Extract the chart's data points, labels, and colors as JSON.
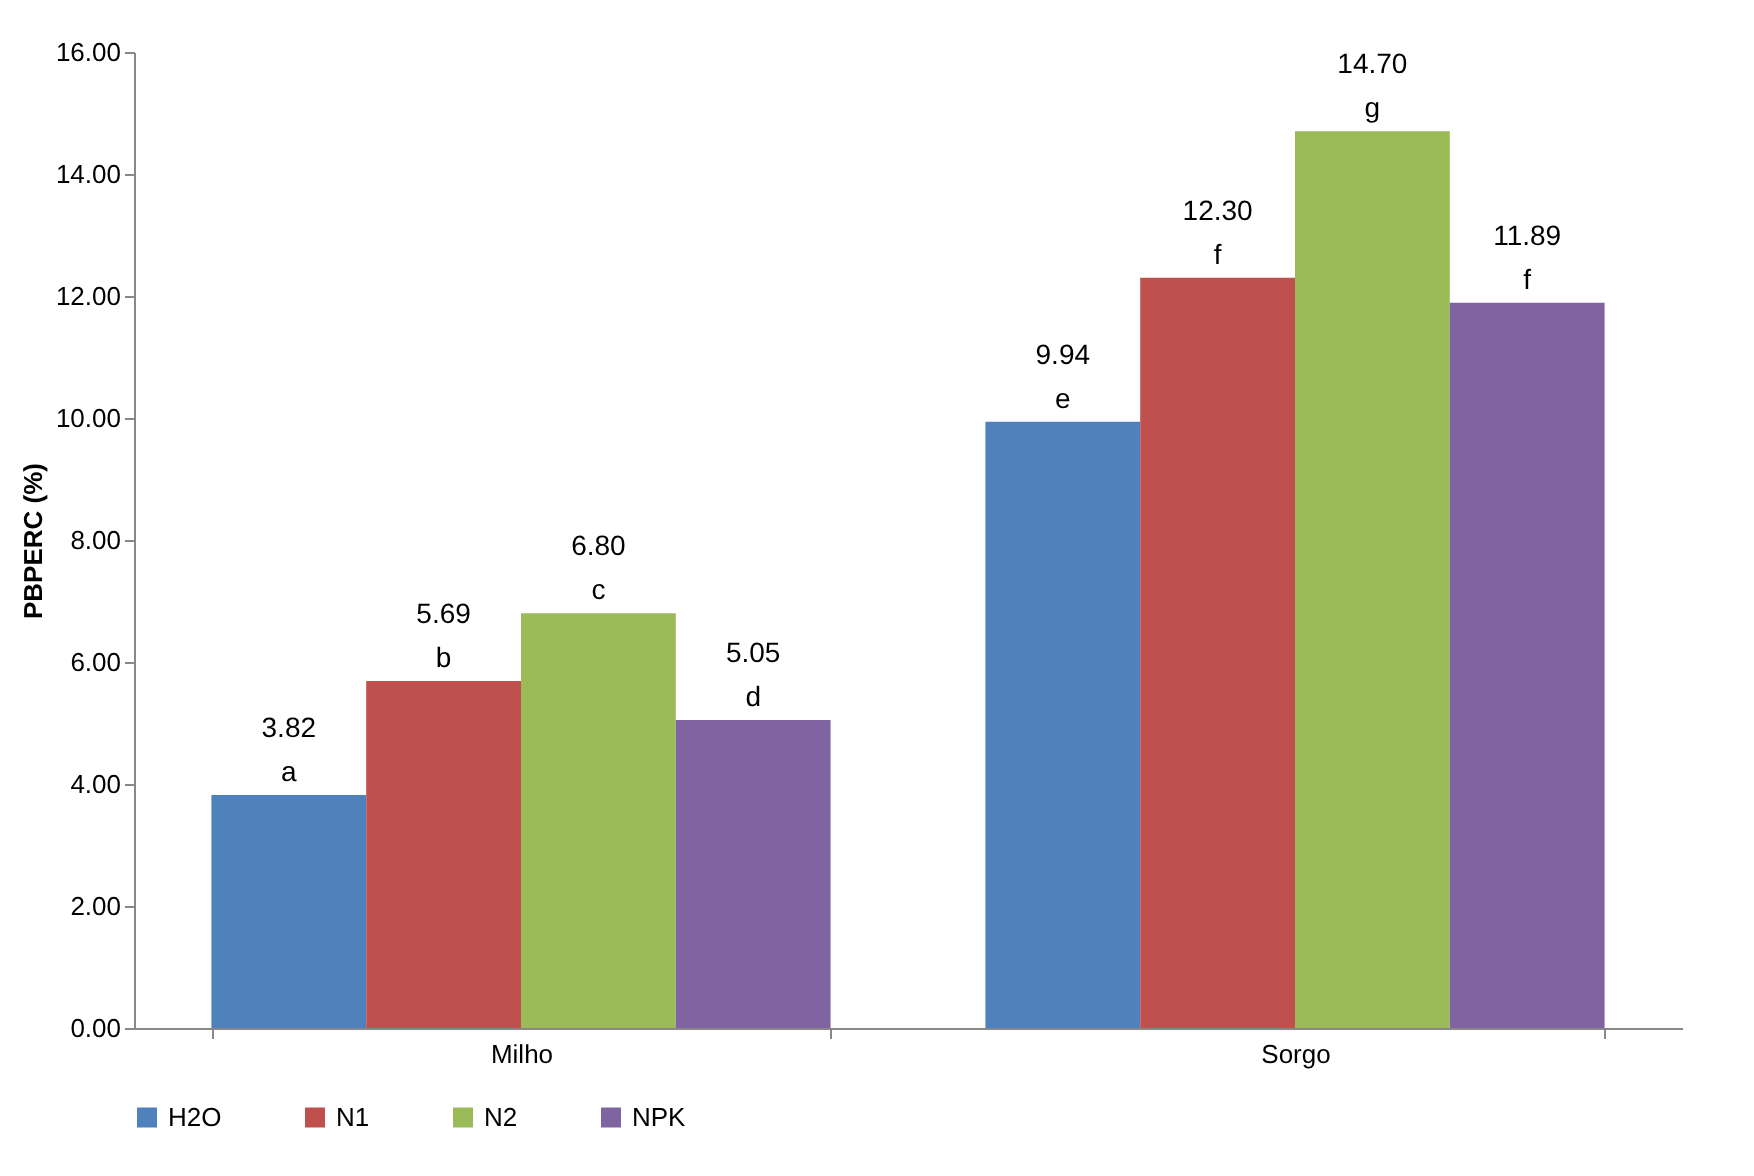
{
  "chart_data": {
    "type": "bar",
    "ylabel": "PBPERC (%)",
    "categories": [
      "Milho",
      "Sorgo"
    ],
    "series": [
      {
        "name": "H2O",
        "color": "#4f81bd",
        "values": [
          3.82,
          9.94
        ],
        "value_labels": [
          "3.82\na",
          "9.94\ne"
        ]
      },
      {
        "name": "N1",
        "color": "#c0504d",
        "values": [
          5.69,
          12.3
        ],
        "value_labels": [
          "5.69\nb",
          "12.30\nf"
        ]
      },
      {
        "name": "N2",
        "color": "#9bbb59",
        "values": [
          6.8,
          14.7
        ],
        "value_labels": [
          "6.80\nc",
          "14.70\ng"
        ]
      },
      {
        "name": "NPK",
        "color": "#8064a2",
        "values": [
          5.05,
          11.89
        ],
        "value_labels": [
          "5.05\nd",
          "11.89\nf"
        ]
      }
    ],
    "ylim": [
      0,
      16
    ],
    "yticks": [
      {
        "value": 0,
        "label": "0.00"
      },
      {
        "value": 2,
        "label": "2.00"
      },
      {
        "value": 4,
        "label": "4.00"
      },
      {
        "value": 6,
        "label": "6.00"
      },
      {
        "value": 8,
        "label": "8.00"
      },
      {
        "value": 10,
        "label": "10.00"
      },
      {
        "value": 12,
        "label": "12.00"
      },
      {
        "value": 14,
        "label": "14.00"
      },
      {
        "value": 16,
        "label": "16.00"
      }
    ],
    "grid": false,
    "legend": "bottom"
  }
}
